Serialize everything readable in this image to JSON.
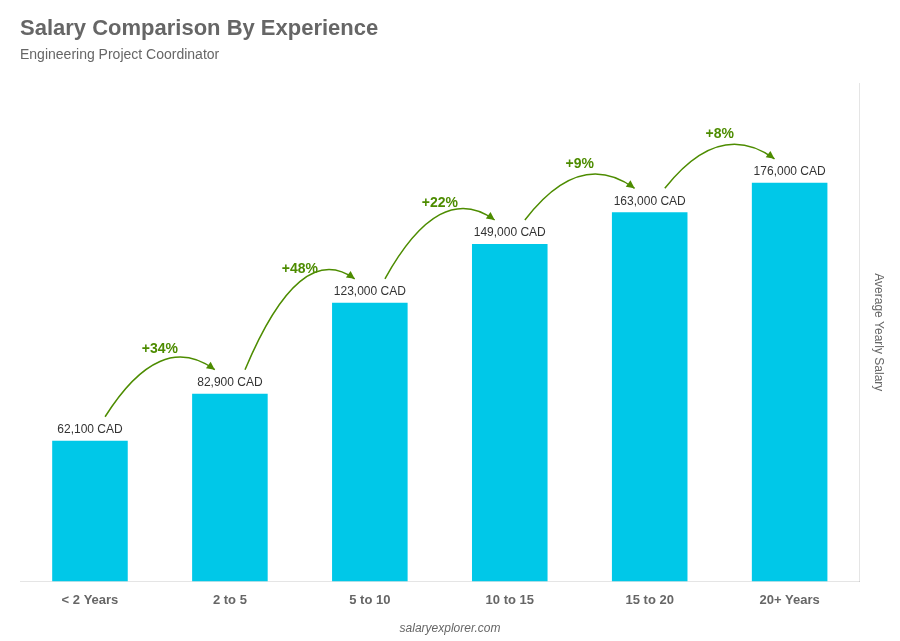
{
  "chart_data": {
    "type": "bar",
    "title": "Salary Comparison By Experience",
    "subtitle": "Engineering Project Coordinator",
    "ylabel": "Average Yearly Salary",
    "watermark": "salaryexplorer.com",
    "categories": [
      "< 2 Years",
      "2 to 5",
      "5 to 10",
      "10 to 15",
      "15 to 20",
      "20+ Years"
    ],
    "values": [
      62100,
      82900,
      123000,
      149000,
      163000,
      176000
    ],
    "value_labels": [
      "62,100 CAD",
      "82,900 CAD",
      "123,000 CAD",
      "149,000 CAD",
      "163,000 CAD",
      "176,000 CAD"
    ],
    "data_labels": true,
    "annotations": [
      "+34%",
      "+48%",
      "+22%",
      "+9%",
      "+8%"
    ],
    "color": "#00c8e8",
    "ylim": [
      0,
      220000
    ],
    "grid": false,
    "tick_labels": "x"
  }
}
